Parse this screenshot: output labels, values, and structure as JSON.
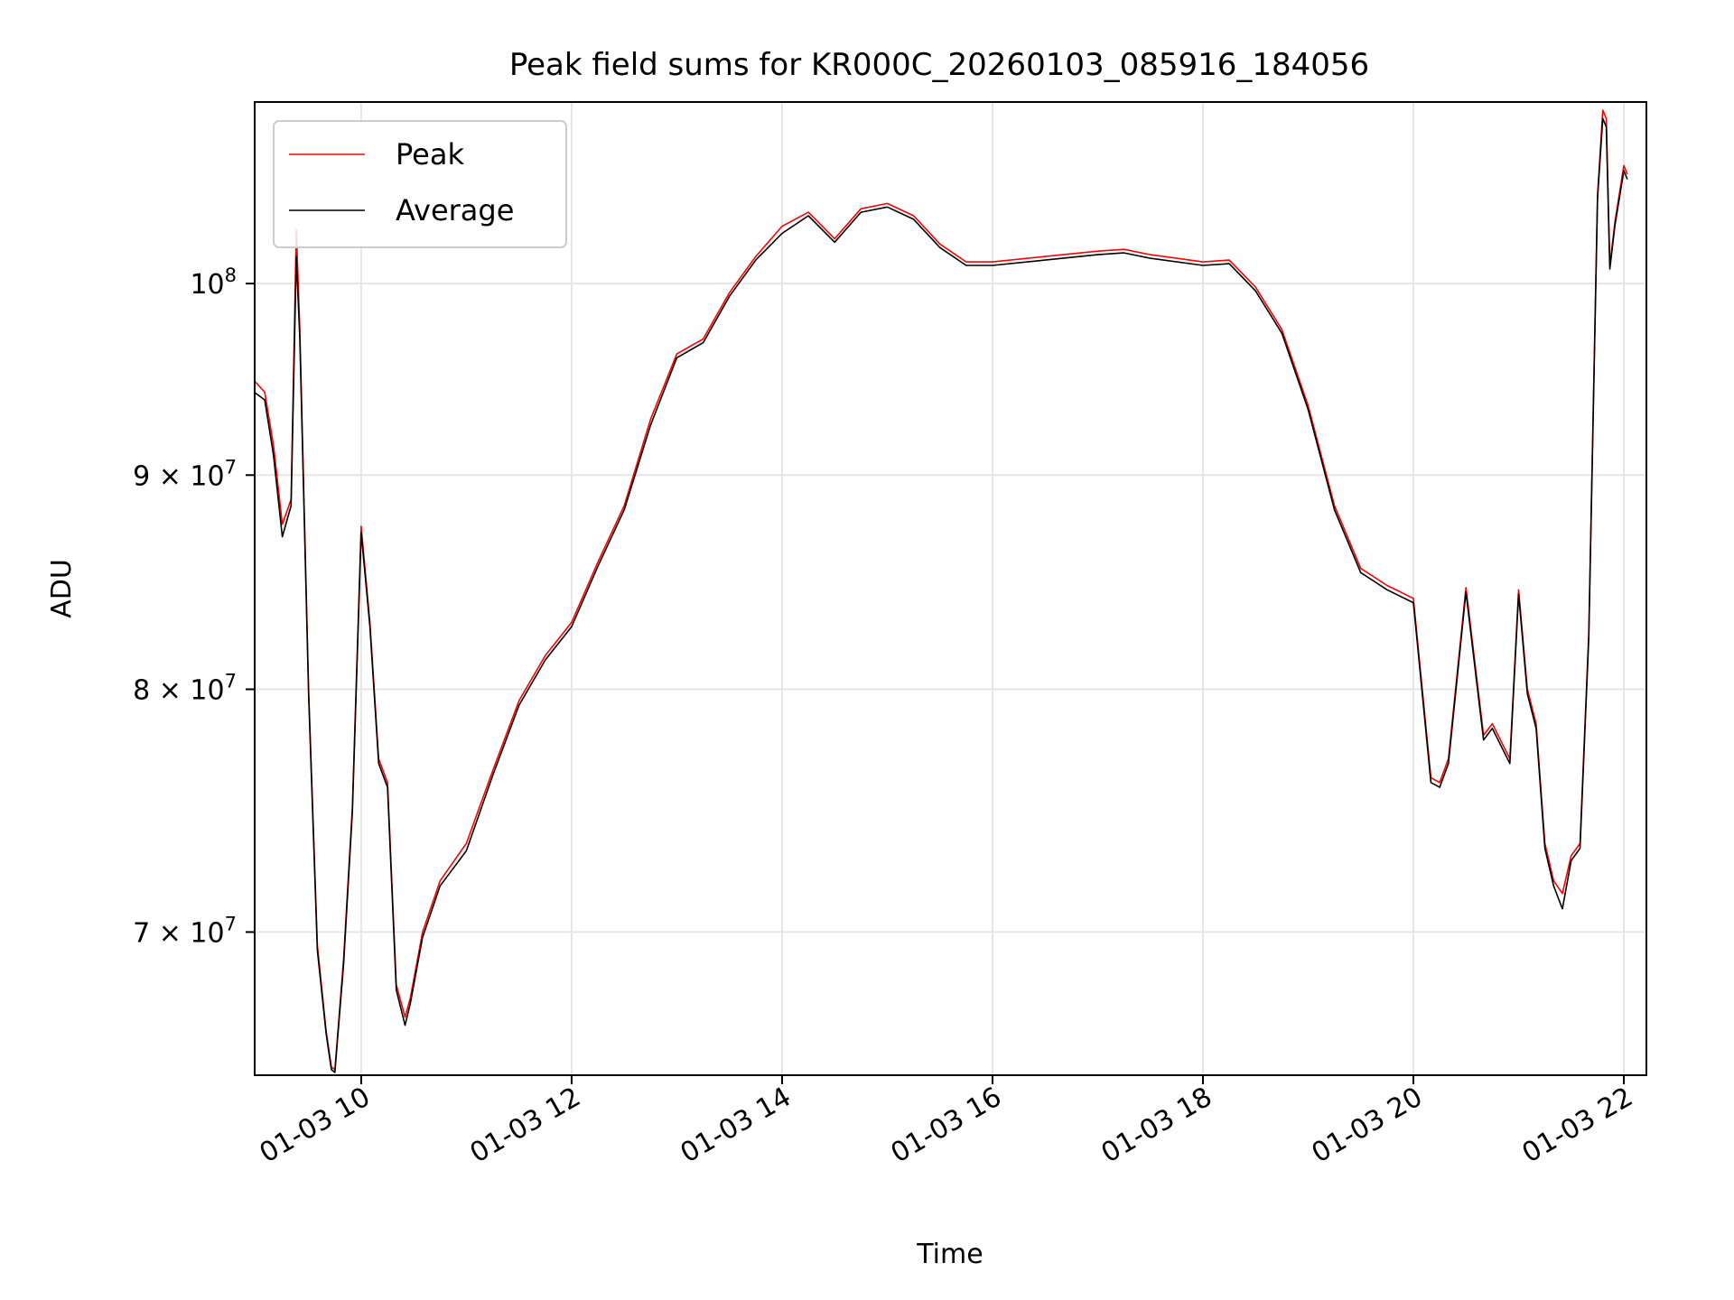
{
  "chart_data": {
    "type": "line",
    "title": "Peak field sums for KR000C_20260103_085916_184056",
    "xlabel": "Time",
    "ylabel": "ADU",
    "y_scale": "log",
    "xlim": [
      "2026-01-03 08:59:16",
      "2026-01-03 22:00:00"
    ],
    "ylim": [
      64700000,
      110500000
    ],
    "x_ticks": [
      {
        "value": "2026-01-03 10:00",
        "label": "01-03 10"
      },
      {
        "value": "2026-01-03 12:00",
        "label": "01-03 12"
      },
      {
        "value": "2026-01-03 14:00",
        "label": "01-03 14"
      },
      {
        "value": "2026-01-03 16:00",
        "label": "01-03 16"
      },
      {
        "value": "2026-01-03 18:00",
        "label": "01-03 18"
      },
      {
        "value": "2026-01-03 20:00",
        "label": "01-03 20"
      },
      {
        "value": "2026-01-03 22:00",
        "label": "01-03 22"
      }
    ],
    "y_ticks": [
      {
        "value": 70000000,
        "mantissa": "7",
        "exponent": "7"
      },
      {
        "value": 80000000,
        "mantissa": "8",
        "exponent": "7"
      },
      {
        "value": 90000000,
        "mantissa": "9",
        "exponent": "7"
      },
      {
        "value": 100000000,
        "mantissa": "",
        "exponent": "8"
      }
    ],
    "grid": true,
    "legend_position": "top-left",
    "series": [
      {
        "name": "Peak",
        "color": "#ff0000",
        "x": [
          "2026-01-03 08:59",
          "2026-01-03 09:05",
          "2026-01-03 09:10",
          "2026-01-03 09:15",
          "2026-01-03 09:20",
          "2026-01-03 09:23",
          "2026-01-03 09:25",
          "2026-01-03 09:30",
          "2026-01-03 09:35",
          "2026-01-03 09:40",
          "2026-01-03 09:43",
          "2026-01-03 09:45",
          "2026-01-03 09:50",
          "2026-01-03 09:55",
          "2026-01-03 10:00",
          "2026-01-03 10:05",
          "2026-01-03 10:10",
          "2026-01-03 10:15",
          "2026-01-03 10:20",
          "2026-01-03 10:25",
          "2026-01-03 10:28",
          "2026-01-03 10:35",
          "2026-01-03 10:45",
          "2026-01-03 11:00",
          "2026-01-03 11:15",
          "2026-01-03 11:30",
          "2026-01-03 11:45",
          "2026-01-03 12:00",
          "2026-01-03 12:15",
          "2026-01-03 12:30",
          "2026-01-03 12:45",
          "2026-01-03 13:00",
          "2026-01-03 13:15",
          "2026-01-03 13:30",
          "2026-01-03 13:45",
          "2026-01-03 14:00",
          "2026-01-03 14:15",
          "2026-01-03 14:30",
          "2026-01-03 14:45",
          "2026-01-03 15:00",
          "2026-01-03 15:15",
          "2026-01-03 15:30",
          "2026-01-03 15:45",
          "2026-01-03 16:00",
          "2026-01-03 16:30",
          "2026-01-03 17:00",
          "2026-01-03 17:15",
          "2026-01-03 17:30",
          "2026-01-03 18:00",
          "2026-01-03 18:15",
          "2026-01-03 18:30",
          "2026-01-03 18:45",
          "2026-01-03 19:00",
          "2026-01-03 19:15",
          "2026-01-03 19:30",
          "2026-01-03 19:45",
          "2026-01-03 20:00",
          "2026-01-03 20:10",
          "2026-01-03 20:15",
          "2026-01-03 20:20",
          "2026-01-03 20:30",
          "2026-01-03 20:40",
          "2026-01-03 20:45",
          "2026-01-03 20:55",
          "2026-01-03 21:00",
          "2026-01-03 21:05",
          "2026-01-03 21:10",
          "2026-01-03 21:15",
          "2026-01-03 21:20",
          "2026-01-03 21:25",
          "2026-01-03 21:30",
          "2026-01-03 21:35",
          "2026-01-03 21:40",
          "2026-01-03 21:45",
          "2026-01-03 21:48",
          "2026-01-03 21:50",
          "2026-01-03 21:52",
          "2026-01-03 21:55",
          "2026-01-03 22:00",
          "2026-01-03 22:02"
        ],
        "y": [
          94800000,
          94200000,
          91500000,
          87600000,
          88800000,
          103000000,
          97500000,
          80000000,
          69500000,
          66300000,
          65000000,
          64900000,
          69000000,
          75000000,
          87500000,
          83000000,
          77000000,
          76000000,
          68000000,
          66800000,
          67500000,
          70000000,
          72000000,
          73500000,
          76500000,
          79500000,
          81500000,
          83000000,
          85800000,
          88500000,
          92800000,
          96200000,
          97000000,
          99500000,
          101500000,
          103200000,
          104000000,
          102500000,
          104200000,
          104500000,
          103800000,
          102200000,
          101200000,
          101200000,
          101500000,
          101800000,
          101900000,
          101600000,
          101200000,
          101300000,
          99800000,
          97500000,
          93500000,
          88500000,
          85500000,
          84700000,
          84100000,
          76200000,
          76000000,
          77000000,
          84600000,
          78000000,
          78500000,
          77000000,
          84500000,
          80000000,
          78500000,
          73500000,
          72000000,
          71500000,
          73000000,
          73500000,
          82500000,
          105000000,
          110000000,
          109500000,
          101000000,
          103500000,
          106700000,
          106200000
        ]
      },
      {
        "name": "Average",
        "color": "#000000",
        "x": [
          "2026-01-03 08:59",
          "2026-01-03 09:05",
          "2026-01-03 09:10",
          "2026-01-03 09:15",
          "2026-01-03 09:20",
          "2026-01-03 09:23",
          "2026-01-03 09:25",
          "2026-01-03 09:30",
          "2026-01-03 09:35",
          "2026-01-03 09:40",
          "2026-01-03 09:43",
          "2026-01-03 09:45",
          "2026-01-03 09:50",
          "2026-01-03 09:55",
          "2026-01-03 10:00",
          "2026-01-03 10:05",
          "2026-01-03 10:10",
          "2026-01-03 10:15",
          "2026-01-03 10:20",
          "2026-01-03 10:25",
          "2026-01-03 10:28",
          "2026-01-03 10:35",
          "2026-01-03 10:45",
          "2026-01-03 11:00",
          "2026-01-03 11:15",
          "2026-01-03 11:30",
          "2026-01-03 11:45",
          "2026-01-03 12:00",
          "2026-01-03 12:15",
          "2026-01-03 12:30",
          "2026-01-03 12:45",
          "2026-01-03 13:00",
          "2026-01-03 13:15",
          "2026-01-03 13:30",
          "2026-01-03 13:45",
          "2026-01-03 14:00",
          "2026-01-03 14:15",
          "2026-01-03 14:30",
          "2026-01-03 14:45",
          "2026-01-03 15:00",
          "2026-01-03 15:15",
          "2026-01-03 15:30",
          "2026-01-03 15:45",
          "2026-01-03 16:00",
          "2026-01-03 16:30",
          "2026-01-03 17:00",
          "2026-01-03 17:15",
          "2026-01-03 17:30",
          "2026-01-03 18:00",
          "2026-01-03 18:15",
          "2026-01-03 18:30",
          "2026-01-03 18:45",
          "2026-01-03 19:00",
          "2026-01-03 19:15",
          "2026-01-03 19:30",
          "2026-01-03 19:45",
          "2026-01-03 20:00",
          "2026-01-03 20:10",
          "2026-01-03 20:15",
          "2026-01-03 20:20",
          "2026-01-03 20:30",
          "2026-01-03 20:40",
          "2026-01-03 20:45",
          "2026-01-03 20:55",
          "2026-01-03 21:00",
          "2026-01-03 21:05",
          "2026-01-03 21:10",
          "2026-01-03 21:15",
          "2026-01-03 21:20",
          "2026-01-03 21:25",
          "2026-01-03 21:30",
          "2026-01-03 21:35",
          "2026-01-03 21:40",
          "2026-01-03 21:45",
          "2026-01-03 21:48",
          "2026-01-03 21:50",
          "2026-01-03 21:52",
          "2026-01-03 21:55",
          "2026-01-03 22:00",
          "2026-01-03 22:02"
        ],
        "y": [
          94200000,
          93800000,
          91000000,
          87000000,
          88500000,
          101500000,
          97000000,
          79800000,
          69300000,
          66200000,
          64900000,
          64800000,
          68800000,
          74800000,
          87200000,
          82800000,
          76800000,
          75800000,
          67800000,
          66500000,
          67300000,
          69800000,
          71800000,
          73200000,
          76300000,
          79300000,
          81300000,
          82800000,
          85600000,
          88300000,
          92500000,
          96000000,
          96800000,
          99300000,
          101300000,
          102800000,
          103800000,
          102300000,
          104000000,
          104300000,
          103600000,
          102000000,
          101000000,
          101000000,
          101300000,
          101600000,
          101700000,
          101400000,
          101000000,
          101100000,
          99600000,
          97300000,
          93300000,
          88300000,
          85300000,
          84500000,
          83900000,
          76000000,
          75800000,
          76800000,
          84400000,
          77800000,
          78300000,
          76800000,
          84300000,
          79800000,
          78300000,
          73300000,
          71800000,
          70900000,
          72800000,
          73300000,
          82300000,
          104800000,
          109500000,
          109000000,
          100800000,
          103300000,
          106400000,
          105900000
        ]
      }
    ]
  }
}
